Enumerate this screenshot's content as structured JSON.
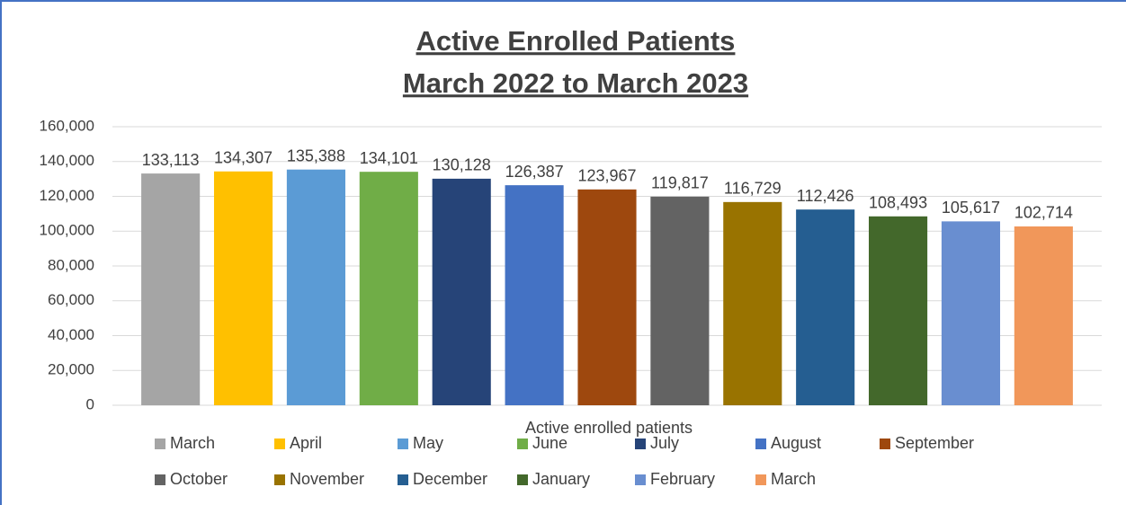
{
  "chart_data": {
    "type": "bar",
    "title": "Active Enrolled Patients",
    "subtitle": "March 2022 to March 2023",
    "categories": [
      "Active enrolled patients"
    ],
    "series": [
      {
        "name": "March",
        "color": "#a5a5a5",
        "values": [
          133113
        ],
        "value_labels": [
          "133,113"
        ]
      },
      {
        "name": "April",
        "color": "#ffc000",
        "values": [
          134307
        ],
        "value_labels": [
          "134,307"
        ]
      },
      {
        "name": "May",
        "color": "#5b9bd5",
        "values": [
          135388
        ],
        "value_labels": [
          "135,388"
        ]
      },
      {
        "name": "June",
        "color": "#70ad47",
        "values": [
          134101
        ],
        "value_labels": [
          "134,101"
        ]
      },
      {
        "name": "July",
        "color": "#264478",
        "values": [
          130128
        ],
        "value_labels": [
          "130,128"
        ]
      },
      {
        "name": "August",
        "color": "#4472c4",
        "values": [
          126387
        ],
        "value_labels": [
          "126,387"
        ]
      },
      {
        "name": "September",
        "color": "#9e480e",
        "values": [
          123967
        ],
        "value_labels": [
          "123,967"
        ]
      },
      {
        "name": "October",
        "color": "#636363",
        "values": [
          119817
        ],
        "value_labels": [
          "119,817"
        ]
      },
      {
        "name": "November",
        "color": "#997300",
        "values": [
          116729
        ],
        "value_labels": [
          "116,729"
        ]
      },
      {
        "name": "December",
        "color": "#255e91",
        "values": [
          112426
        ],
        "value_labels": [
          "112,426"
        ]
      },
      {
        "name": "January",
        "color": "#43682b",
        "values": [
          108493
        ],
        "value_labels": [
          "108,493"
        ]
      },
      {
        "name": "February",
        "color": "#698ed0",
        "values": [
          105617
        ],
        "value_labels": [
          "105,617"
        ]
      },
      {
        "name": "March",
        "color": "#f1975a",
        "values": [
          102714
        ],
        "value_labels": [
          "102,714"
        ]
      }
    ],
    "ylim": [
      0,
      160000
    ],
    "yticks": [
      0,
      {
        "value": 20000,
        "label": "20,000"
      },
      {
        "value": 40000,
        "label": "40,000"
      },
      {
        "value": 60000,
        "label": "60,000"
      },
      {
        "value": 80000,
        "label": "80,000"
      },
      {
        "value": 100000,
        "label": "100,000"
      },
      {
        "value": 120000,
        "label": "120,000"
      },
      {
        "value": 140000,
        "label": "140,000"
      },
      {
        "value": 160000,
        "label": "160,000"
      }
    ],
    "grid": true,
    "legend": "bottom"
  }
}
